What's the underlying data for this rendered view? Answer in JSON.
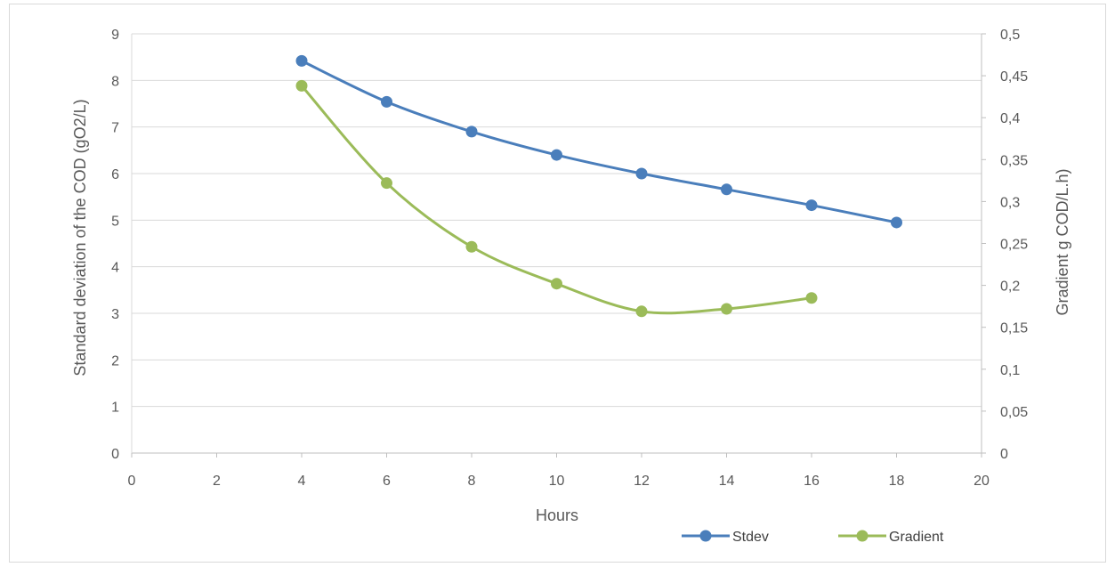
{
  "chart_data": {
    "type": "line",
    "xlabel": "Hours",
    "ylabel": "Standard deviation of the COD (gO2/L)",
    "y2label": "Gradient g COD/L.h)",
    "xlim": [
      0,
      20
    ],
    "ylim": [
      0,
      9
    ],
    "y2lim": [
      0,
      0.5
    ],
    "x_ticks": [
      "0",
      "2",
      "4",
      "6",
      "8",
      "10",
      "12",
      "14",
      "16",
      "18",
      "20"
    ],
    "y_ticks": [
      "0",
      "1",
      "2",
      "3",
      "4",
      "5",
      "6",
      "7",
      "8",
      "9"
    ],
    "y2_ticks": [
      "0",
      "0,05",
      "0,1",
      "0,15",
      "0,2",
      "0,25",
      "0,3",
      "0,35",
      "0,4",
      "0,45",
      "0,5"
    ],
    "grid": true,
    "legend_position": "bottom-right",
    "series": [
      {
        "name": "Stdev",
        "axis": "left",
        "color": "#4a7ebb",
        "smooth": true,
        "x": [
          4,
          6,
          8,
          10,
          12,
          14,
          16,
          18
        ],
        "y": [
          8.42,
          7.54,
          6.9,
          6.4,
          6.0,
          5.66,
          5.32,
          4.95
        ]
      },
      {
        "name": "Gradient",
        "axis": "right",
        "color": "#9bbb59",
        "smooth": true,
        "x": [
          4,
          6,
          8,
          10,
          12,
          14,
          16
        ],
        "y": [
          0.438,
          0.322,
          0.246,
          0.202,
          0.169,
          0.172,
          0.185
        ]
      }
    ]
  }
}
